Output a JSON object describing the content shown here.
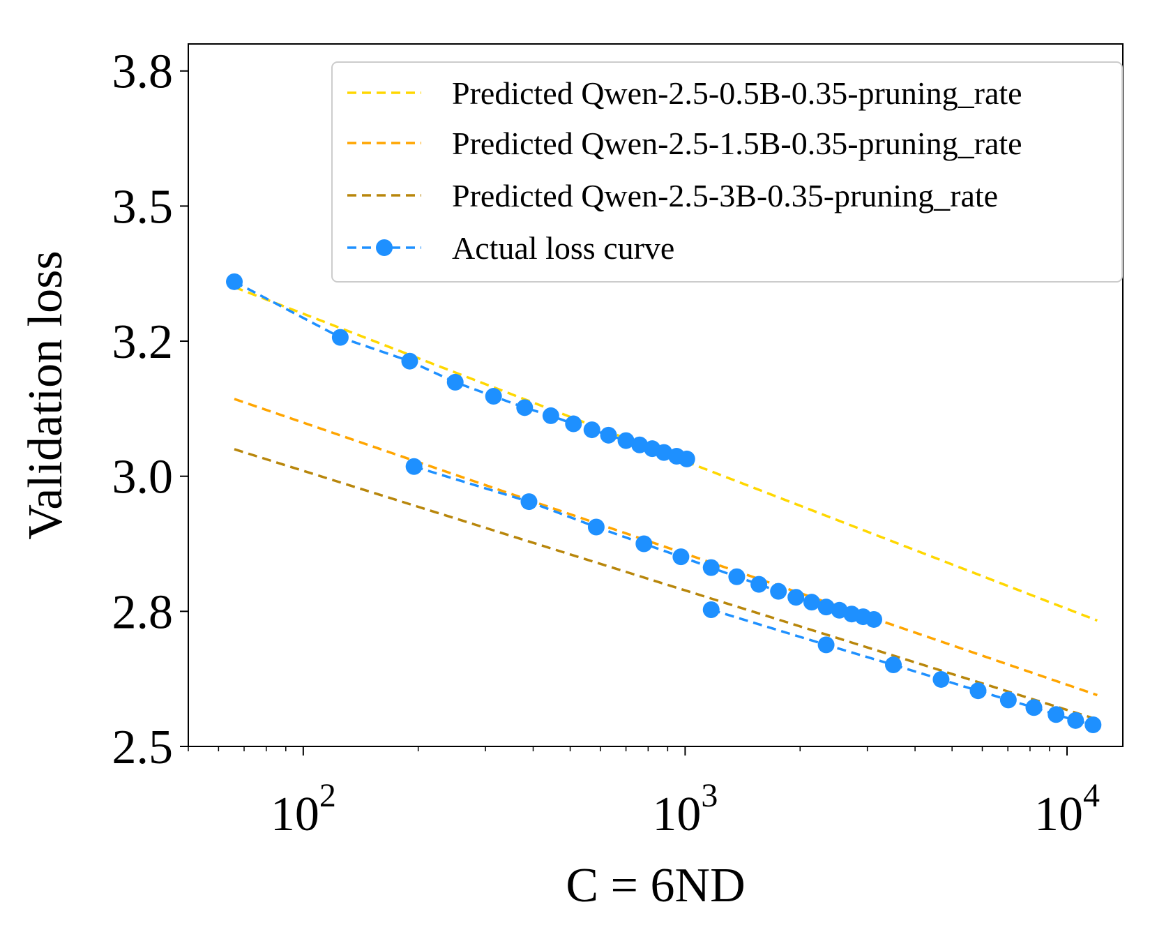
{
  "chart_data": {
    "type": "line",
    "title": "",
    "xlabel": "C = 6ND",
    "ylabel": "Validation loss",
    "xscale": "log",
    "xlim": [
      50,
      14000
    ],
    "ylim": [
      2.5,
      3.8
    ],
    "y_ticks": [
      "2.5",
      "2.8",
      "3.0",
      "3.2",
      "3.5",
      "3.8"
    ],
    "y_tick_values": [
      2.5,
      2.75,
      3.0,
      3.25,
      3.5,
      3.75
    ],
    "x_ticks": [
      {
        "value": 100,
        "base": "10",
        "exp": "2"
      },
      {
        "value": 1000,
        "base": "10",
        "exp": "3"
      },
      {
        "value": 10000,
        "base": "10",
        "exp": "4"
      }
    ],
    "legend_position": "top-right",
    "colors": {
      "predicted_0_5b": "#FFD700",
      "predicted_1_5b": "#FFA500",
      "predicted_3b": "#B8860B",
      "actual": "#1E90FF"
    },
    "series": [
      {
        "name": "Predicted Qwen-2.5-0.5B-0.35-pruning_rate",
        "kind": "predicted",
        "color_key": "predicted_0_5b",
        "x": [
          66,
          12000
        ],
        "y": [
          3.35,
          2.733
        ]
      },
      {
        "name": "Predicted Qwen-2.5-1.5B-0.35-pruning_rate",
        "kind": "predicted",
        "color_key": "predicted_1_5b",
        "x": [
          66,
          12000
        ],
        "y": [
          3.143,
          2.595
        ]
      },
      {
        "name": "Predicted Qwen-2.5-3B-0.35-pruning_rate",
        "kind": "predicted",
        "color_key": "predicted_3b",
        "x": [
          66,
          12000
        ],
        "y": [
          3.05,
          2.55
        ]
      },
      {
        "name": "Actual loss curve",
        "kind": "actual",
        "color_key": "actual",
        "runs": [
          {
            "x": [
              66,
              125,
              190,
              250,
              315,
              380,
              445,
              510,
              570,
              630,
              700,
              760,
              820,
              880,
              950,
              1010
            ],
            "y": [
              3.36,
              3.257,
              3.213,
              3.174,
              3.148,
              3.127,
              3.112,
              3.097,
              3.086,
              3.076,
              3.066,
              3.058,
              3.051,
              3.044,
              3.037,
              3.032
            ]
          },
          {
            "x": [
              195,
              390,
              585,
              780,
              975,
              1170,
              1365,
              1560,
              1755,
              1950,
              2145,
              2340,
              2535,
              2730,
              2925,
              3120
            ],
            "y": [
              3.018,
              2.953,
              2.906,
              2.875,
              2.851,
              2.831,
              2.814,
              2.8,
              2.787,
              2.776,
              2.767,
              2.758,
              2.752,
              2.745,
              2.74,
              2.735
            ]
          },
          {
            "x": [
              1170,
              2340,
              3510,
              4680,
              5850,
              7020,
              8190,
              9360,
              10530,
              11700
            ],
            "y": [
              2.753,
              2.688,
              2.651,
              2.624,
              2.603,
              2.586,
              2.572,
              2.559,
              2.548,
              2.54
            ]
          }
        ]
      }
    ]
  }
}
